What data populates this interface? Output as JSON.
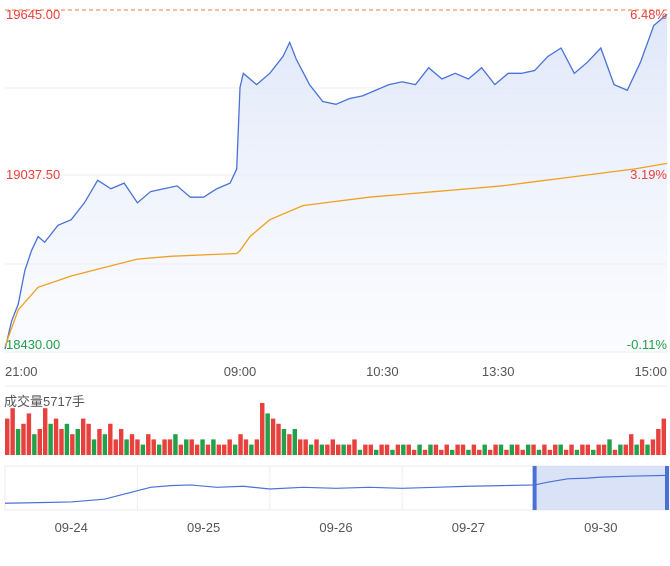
{
  "colors": {
    "up": "#e8403c",
    "down": "#22a04a",
    "price_line": "#4a72d6",
    "avg_line": "#f0a020",
    "ref_dash": "#f07a3a",
    "axis_text": "#555555",
    "grid": "#eeeeee"
  },
  "chart_data": [
    {
      "type": "line",
      "panel": "intraday-price",
      "y_labels": {
        "top_left": "19645.00",
        "mid_left": "19037.50",
        "bottom_left": "18430.00",
        "top_right": "6.48%",
        "mid_right": "3.19%",
        "bottom_right": "-0.11%"
      },
      "ylim": [
        18430.0,
        19645.0
      ],
      "x_tick_labels": [
        "21:00",
        "09:00",
        "10:30",
        "13:30",
        "15:00"
      ],
      "x_tick_positions": [
        0,
        0.355,
        0.57,
        0.745,
        1.0
      ],
      "series": [
        {
          "role": "price",
          "x": [
            0,
            0.01,
            0.02,
            0.03,
            0.04,
            0.05,
            0.06,
            0.08,
            0.1,
            0.12,
            0.14,
            0.16,
            0.18,
            0.2,
            0.22,
            0.24,
            0.26,
            0.28,
            0.3,
            0.32,
            0.34,
            0.35,
            0.355,
            0.36,
            0.38,
            0.4,
            0.42,
            0.43,
            0.44,
            0.46,
            0.48,
            0.5,
            0.52,
            0.54,
            0.56,
            0.58,
            0.6,
            0.62,
            0.64,
            0.66,
            0.68,
            0.7,
            0.72,
            0.74,
            0.76,
            0.78,
            0.8,
            0.82,
            0.84,
            0.86,
            0.88,
            0.9,
            0.92,
            0.94,
            0.96,
            0.98,
            1.0
          ],
          "values": [
            18440,
            18540,
            18600,
            18720,
            18790,
            18840,
            18820,
            18880,
            18900,
            18960,
            19040,
            19010,
            19030,
            18960,
            19000,
            19010,
            19020,
            18980,
            18980,
            19010,
            19030,
            19080,
            19370,
            19420,
            19380,
            19420,
            19480,
            19530,
            19470,
            19380,
            19320,
            19310,
            19330,
            19340,
            19360,
            19380,
            19390,
            19380,
            19440,
            19400,
            19420,
            19400,
            19440,
            19380,
            19420,
            19420,
            19430,
            19480,
            19510,
            19420,
            19460,
            19510,
            19380,
            19360,
            19460,
            19590,
            19630
          ]
        },
        {
          "role": "average",
          "x": [
            0,
            0.02,
            0.05,
            0.1,
            0.15,
            0.2,
            0.25,
            0.3,
            0.35,
            0.355,
            0.37,
            0.4,
            0.45,
            0.5,
            0.55,
            0.6,
            0.65,
            0.7,
            0.75,
            0.8,
            0.85,
            0.9,
            0.95,
            1.0
          ],
          "values": [
            18450,
            18580,
            18660,
            18700,
            18730,
            18760,
            18770,
            18775,
            18780,
            18790,
            18840,
            18900,
            18950,
            18965,
            18980,
            18990,
            19000,
            19010,
            19020,
            19035,
            19050,
            19065,
            19080,
            19100
          ]
        }
      ]
    },
    {
      "type": "bar",
      "panel": "volume",
      "title": "成交量5717手",
      "values_relative": [
        0.7,
        0.9,
        0.5,
        0.6,
        0.8,
        0.4,
        0.5,
        0.9,
        0.6,
        0.7,
        0.5,
        0.6,
        0.4,
        0.5,
        0.7,
        0.6,
        0.3,
        0.5,
        0.4,
        0.6,
        0.3,
        0.5,
        0.3,
        0.4,
        0.3,
        0.2,
        0.4,
        0.3,
        0.2,
        0.3,
        0.3,
        0.4,
        0.2,
        0.3,
        0.3,
        0.2,
        0.3,
        0.2,
        0.3,
        0.2,
        0.2,
        0.3,
        0.2,
        0.4,
        0.3,
        0.2,
        0.3,
        1.0,
        0.8,
        0.7,
        0.6,
        0.5,
        0.4,
        0.5,
        0.3,
        0.3,
        0.2,
        0.3,
        0.2,
        0.2,
        0.3,
        0.2,
        0.2,
        0.2,
        0.3,
        0.1,
        0.2,
        0.2,
        0.1,
        0.2,
        0.2,
        0.1,
        0.2,
        0.2,
        0.2,
        0.1,
        0.2,
        0.1,
        0.2,
        0.2,
        0.1,
        0.2,
        0.1,
        0.2,
        0.2,
        0.1,
        0.2,
        0.1,
        0.2,
        0.1,
        0.2,
        0.2,
        0.1,
        0.2,
        0.2,
        0.1,
        0.2,
        0.2,
        0.1,
        0.2,
        0.1,
        0.2,
        0.2,
        0.1,
        0.2,
        0.1,
        0.2,
        0.2,
        0.1,
        0.2,
        0.2,
        0.3,
        0.1,
        0.2,
        0.2,
        0.4,
        0.2,
        0.3,
        0.2,
        0.3,
        0.5,
        0.7
      ],
      "up_pattern": [
        1,
        1,
        0,
        1,
        1,
        0,
        1,
        1,
        0,
        1,
        1,
        0,
        1,
        0,
        1,
        1,
        0,
        1,
        0,
        1
      ]
    },
    {
      "type": "area",
      "panel": "overview-navigator",
      "x_tick_labels": [
        "09-24",
        "09-25",
        "09-26",
        "09-27",
        "09-30"
      ],
      "x": [
        0,
        0.05,
        0.1,
        0.15,
        0.17,
        0.2,
        0.22,
        0.25,
        0.28,
        0.32,
        0.36,
        0.4,
        0.45,
        0.5,
        0.55,
        0.6,
        0.65,
        0.7,
        0.75,
        0.8,
        0.82,
        0.85,
        0.88,
        0.9,
        0.95,
        1.0
      ],
      "values": [
        0.08,
        0.1,
        0.12,
        0.2,
        0.3,
        0.45,
        0.55,
        0.6,
        0.62,
        0.55,
        0.58,
        0.5,
        0.55,
        0.52,
        0.55,
        0.52,
        0.55,
        0.58,
        0.6,
        0.62,
        0.7,
        0.8,
        0.82,
        0.85,
        0.88,
        0.9
      ],
      "selected_range": [
        0.8,
        1.0
      ]
    }
  ]
}
